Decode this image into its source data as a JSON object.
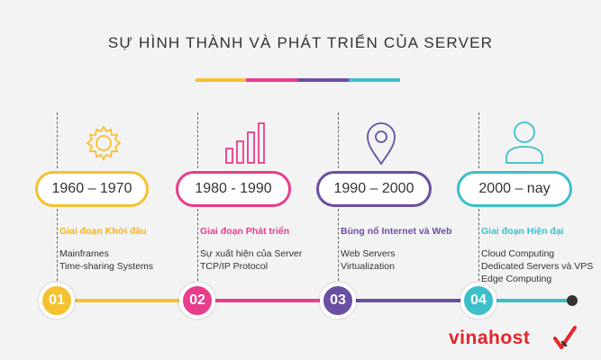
{
  "title": "SỰ HÌNH THÀNH VÀ PHÁT TRIỂN CỦA SERVER",
  "colors": {
    "yellow": "#f6c12f",
    "pink": "#e83d8c",
    "purple": "#6a4fa3",
    "teal": "#3cbfc9",
    "dark": "#333333",
    "brand": "#e3262b"
  },
  "stages": [
    {
      "number": "01",
      "period": "1960 – 1970",
      "phase": "Giai đoạn Khởi đầu",
      "items": [
        "Mainframes",
        "Time-sharing Systems"
      ],
      "icon": "gear-icon"
    },
    {
      "number": "02",
      "period": "1980 - 1990",
      "phase": "Giai đoạn Phát triển",
      "items": [
        "Sự xuất hiện của Server",
        "TCP/IP Protocol"
      ],
      "icon": "bar-chart-icon"
    },
    {
      "number": "03",
      "period": "1990 – 2000",
      "phase": "Bùng nổ Internet và Web",
      "items": [
        "Web Servers",
        "Virtualization"
      ],
      "icon": "location-pin-icon"
    },
    {
      "number": "04",
      "period": "2000 – nay",
      "phase": "Giai đoạn Hiện đại",
      "items": [
        "Cloud Computing",
        "Dedicated Servers và VPS",
        "Edge Computing"
      ],
      "icon": "user-icon"
    }
  ],
  "logo": {
    "text": "vinahost",
    "mark": "logo-check-icon"
  }
}
